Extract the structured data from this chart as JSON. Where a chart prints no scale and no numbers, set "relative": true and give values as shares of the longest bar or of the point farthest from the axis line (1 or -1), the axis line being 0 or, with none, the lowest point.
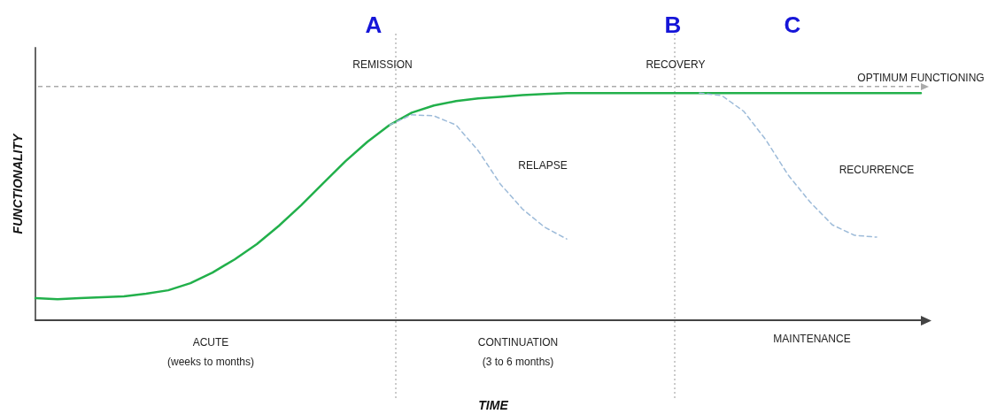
{
  "chart_data": {
    "type": "line",
    "relative": true,
    "ylabel": "FUNCTIONALITY",
    "grid": false,
    "marker": "none",
    "categories": [
      null,
      null,
      null,
      null,
      null,
      null,
      null,
      null,
      null,
      null,
      null,
      null,
      null,
      null,
      null,
      null,
      null,
      null,
      null,
      null,
      null,
      null,
      null,
      null,
      null,
      null,
      null,
      null,
      null,
      null,
      null,
      null,
      null,
      null,
      null,
      null,
      null,
      null,
      null,
      null,
      null
    ],
    "series": [
      {
        "color": "#22b04b",
        "line_style": "solid",
        "values": [
          0.097,
          0.093,
          0.097,
          0.101,
          0.105,
          0.117,
          0.132,
          0.163,
          0.21,
          0.268,
          0.335,
          0.416,
          0.506,
          0.603,
          0.7,
          0.786,
          0.86,
          0.914,
          0.946,
          0.965,
          0.977,
          0.984,
          0.992,
          0.996,
          1,
          1,
          1,
          1,
          1,
          1,
          1,
          1,
          1,
          1,
          1,
          1,
          1,
          1,
          1,
          1,
          1
        ]
      },
      {
        "color": "#9dbbd9",
        "line_style": "dashed",
        "values": [
          null,
          null,
          null,
          null,
          null,
          null,
          null,
          null,
          null,
          null,
          null,
          null,
          null,
          null,
          null,
          null,
          0.86,
          0.905,
          0.9,
          0.86,
          0.747,
          0.6,
          0.49,
          0.41,
          0.358,
          null,
          null,
          null,
          null,
          null,
          null,
          null,
          null,
          null,
          null,
          null,
          null,
          null,
          null,
          null,
          null
        ]
      },
      {
        "color": "#9dbbd9",
        "line_style": "dashed",
        "values": [
          null,
          null,
          null,
          null,
          null,
          null,
          null,
          null,
          null,
          null,
          null,
          null,
          null,
          null,
          null,
          null,
          null,
          null,
          null,
          null,
          null,
          null,
          null,
          null,
          null,
          null,
          null,
          null,
          null,
          null,
          1,
          0.99,
          0.92,
          0.794,
          0.64,
          0.52,
          0.42,
          0.374,
          0.366,
          null,
          null
        ]
      }
    ],
    "ref_lines": [
      {
        "axis": "y",
        "value": 1.03,
        "label": "OPTIMUM FUNCTIONING",
        "color": "#aaaaaa",
        "line_style": "dashed"
      }
    ],
    "annotations": [
      "A",
      "B",
      "C",
      "REMISSION",
      "RECOVERY",
      "RELAPSE",
      "RECURRENCE",
      "ACUTE\n(weeks to months)",
      "CONTINUATION\n(3 to 6 months)",
      "MAINTENANCE",
      "TIME"
    ]
  }
}
